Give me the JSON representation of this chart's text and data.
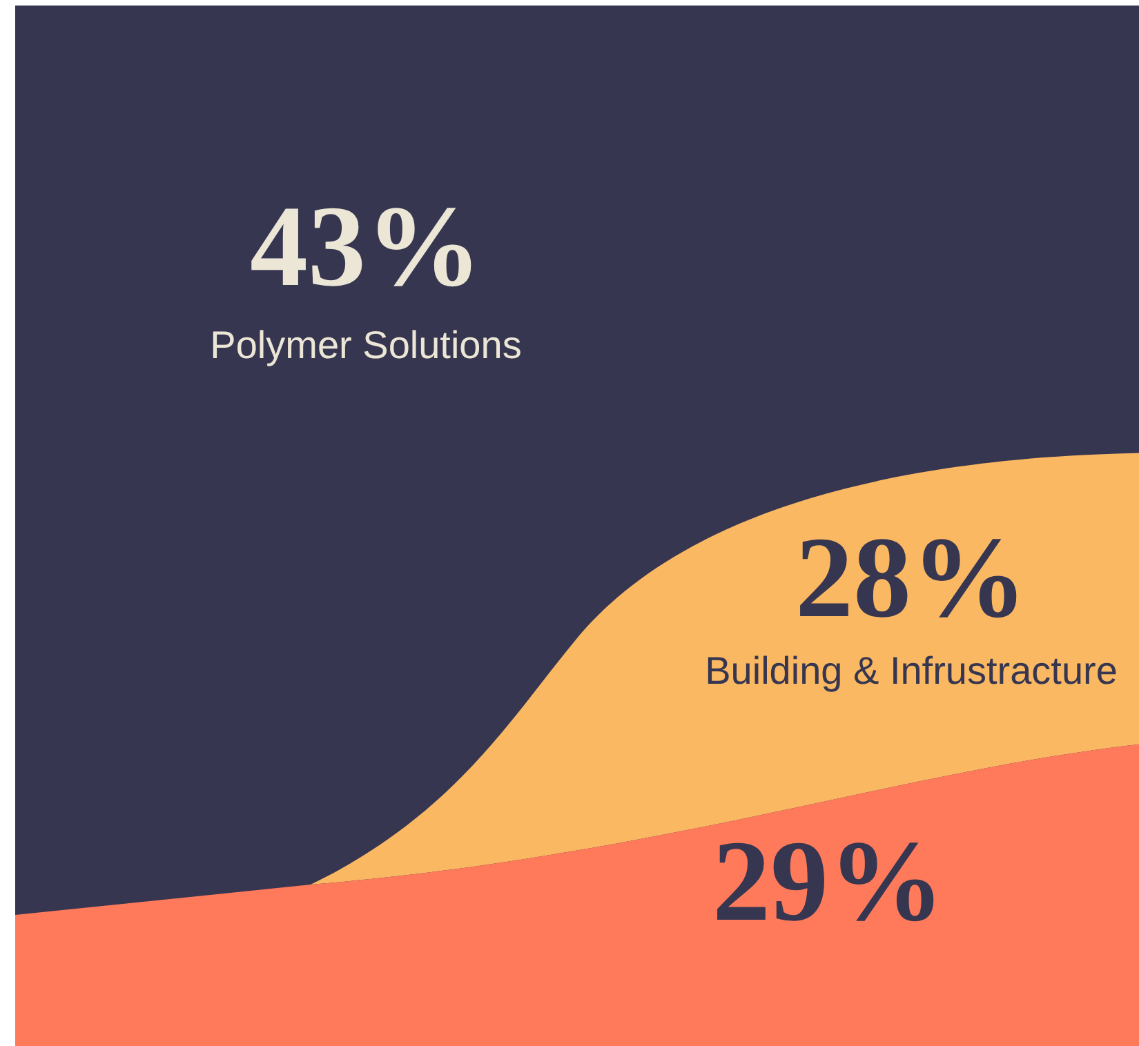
{
  "chart_data": {
    "type": "other",
    "categories": [
      "Polymer Solutions",
      "Building & Infrustracture",
      null
    ],
    "values": [
      43,
      28,
      29
    ],
    "value_labels": [
      "43%",
      "28%",
      "29%"
    ],
    "colors": [
      "#363650",
      "#fbb862",
      "#ff7a5a"
    ]
  }
}
